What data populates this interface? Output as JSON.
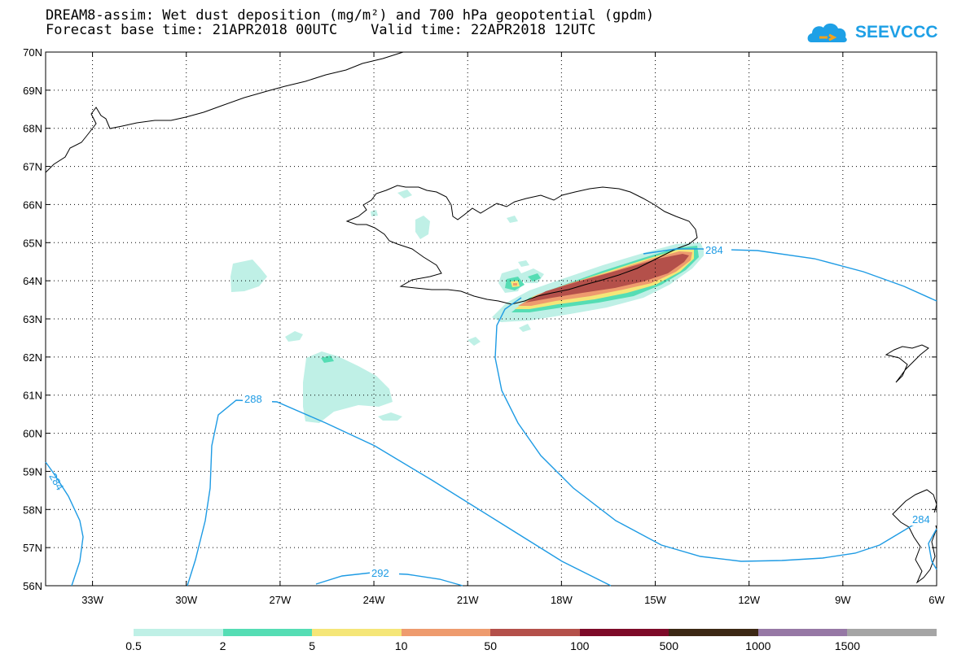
{
  "header": {
    "title_line1": "DREAM8-assim: Wet dust deposition (mg/m²) and 700 hPa geopotential (gpdm)",
    "title_line2": "Forecast base time: 21APR2018 00UTC    Valid time: 22APR2018 12UTC",
    "logo_text": "SEEVCCC",
    "logo_icon": "cloud-icon",
    "logo_color": "#1ea0e6"
  },
  "map": {
    "lat_labels": [
      "70N",
      "69N",
      "68N",
      "67N",
      "66N",
      "65N",
      "64N",
      "63N",
      "62N",
      "61N",
      "60N",
      "59N",
      "58N",
      "57N",
      "56N"
    ],
    "lon_labels": [
      "33W",
      "30W",
      "27W",
      "24W",
      "21W",
      "18W",
      "15W",
      "12W",
      "9W",
      "6W"
    ],
    "lat_range": [
      56,
      70
    ],
    "lon_range": [
      -34.5,
      -6
    ],
    "grid": "dotted",
    "contour_color": "#1e9be4",
    "contour_labels": [
      "284",
      "288",
      "292",
      "284",
      "284"
    ]
  },
  "colorbar": {
    "colors": [
      "#bff0e6",
      "#55ddb4",
      "#f5e678",
      "#ee9b6e",
      "#b4504a",
      "#7d0a28",
      "#3c2814",
      "#9678a5",
      "#a5a5a5"
    ],
    "labels": [
      "0.5",
      "2",
      "5",
      "10",
      "50",
      "100",
      "500",
      "1000",
      "1500"
    ]
  }
}
